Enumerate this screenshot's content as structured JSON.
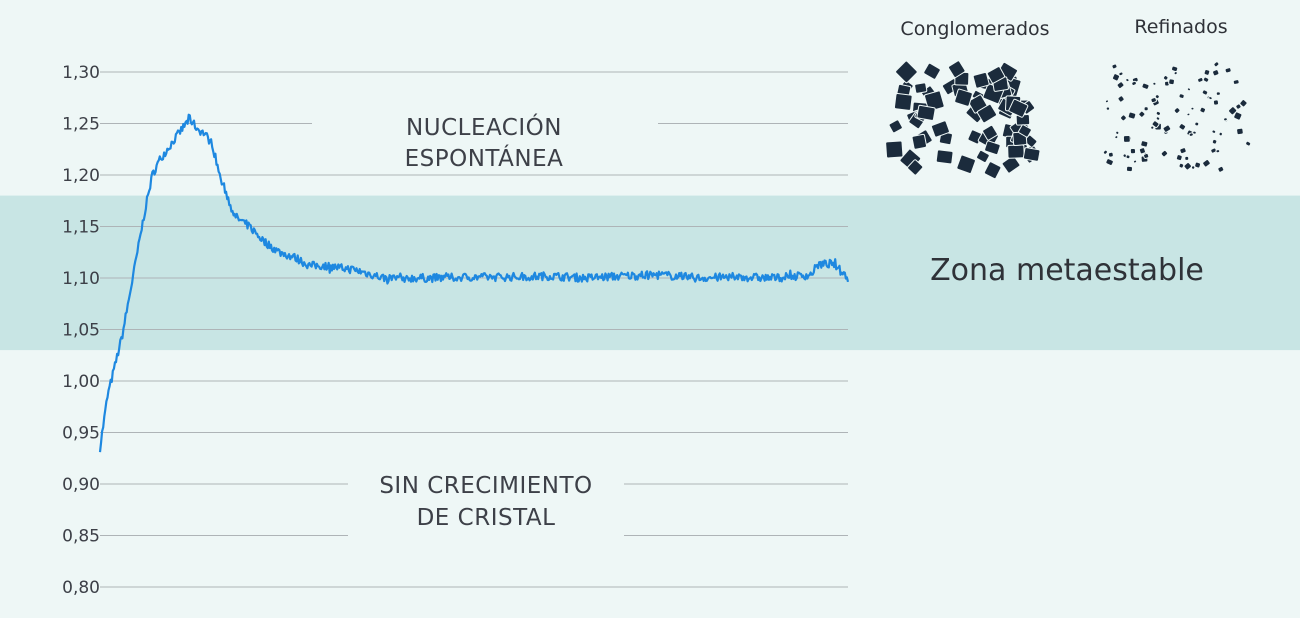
{
  "colors": {
    "background": "#eef7f6",
    "band": "#c8e5e4",
    "grid": "#aeb4b7",
    "line": "#1e88e0",
    "crystal": "#1b2b3c",
    "text": "#3d4048"
  },
  "legend": {
    "conglomerados_label": "Conglomerados",
    "refinados_label": "Refinados"
  },
  "annotations": {
    "upper_line1": "NUCLEACIÓN",
    "upper_line2": "ESPONTÁNEA",
    "lower_line1": "SIN CRECIMIENTO",
    "lower_line2": "DE CRISTAL",
    "zone_label": "Zona metaestable"
  },
  "chart_data": {
    "type": "line",
    "title": "",
    "xlabel": "",
    "ylabel": "",
    "ylim": [
      0.8,
      1.3
    ],
    "yticks": [
      1.3,
      1.25,
      1.2,
      1.15,
      1.1,
      1.05,
      1.0,
      0.95,
      0.9,
      0.85,
      0.8
    ],
    "ytick_labels": [
      "1,30",
      "1,25",
      "1,20",
      "1,15",
      "1,10",
      "1,05",
      "1,00",
      "0,95",
      "0,90",
      "0,85",
      "0,80"
    ],
    "grid": true,
    "metastable_band": [
      1.03,
      1.18
    ],
    "xlim": [
      0,
      100
    ],
    "series": [
      {
        "x": [
          0,
          1,
          2,
          3,
          4,
          5,
          6,
          7,
          8,
          9,
          10,
          11,
          12,
          13,
          14,
          15,
          16,
          17,
          18,
          19,
          20,
          22,
          24,
          26,
          28,
          30,
          32,
          34,
          36,
          38,
          40,
          45,
          50,
          55,
          60,
          65,
          70,
          75,
          80,
          85,
          90,
          95,
          96,
          98,
          100
        ],
        "values": [
          0.935,
          0.985,
          1.015,
          1.045,
          1.085,
          1.125,
          1.165,
          1.2,
          1.215,
          1.225,
          1.235,
          1.245,
          1.255,
          1.245,
          1.24,
          1.23,
          1.2,
          1.18,
          1.16,
          1.155,
          1.15,
          1.135,
          1.125,
          1.12,
          1.112,
          1.112,
          1.11,
          1.108,
          1.104,
          1.1,
          1.1,
          1.1,
          1.101,
          1.101,
          1.102,
          1.1,
          1.102,
          1.103,
          1.1,
          1.101,
          1.1,
          1.103,
          1.113,
          1.114,
          1.1
        ]
      }
    ]
  }
}
